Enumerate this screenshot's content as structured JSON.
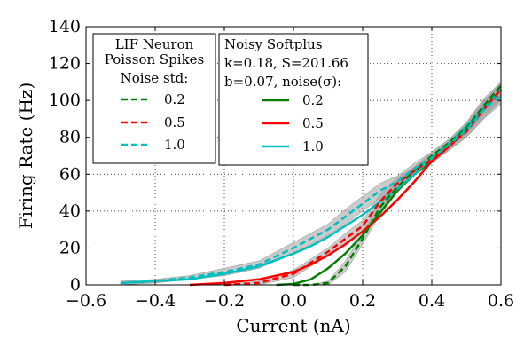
{
  "chart_data": {
    "type": "line",
    "xlabel": "Current (nA)",
    "ylabel": "Firing Rate (Hz)",
    "xlim": [
      -0.6,
      0.6
    ],
    "ylim": [
      0,
      140
    ],
    "x_ticks": [
      -0.6,
      -0.4,
      -0.2,
      0.0,
      0.2,
      0.4,
      0.6
    ],
    "x_tick_labels": [
      "−0.6",
      "−0.4",
      "−0.2",
      "0.0",
      "0.2",
      "0.4",
      "0.6"
    ],
    "y_ticks": [
      0,
      20,
      40,
      60,
      80,
      100,
      120,
      140
    ],
    "y_tick_labels": [
      "0",
      "20",
      "40",
      "60",
      "80",
      "100",
      "120",
      "140"
    ],
    "grid": true,
    "legends": [
      {
        "placement": "top-left",
        "title_lines": [
          "LIF Neuron",
          "Poisson Spikes",
          "Noise std:"
        ],
        "entries": [
          {
            "label": "0.2",
            "color": "#008000",
            "style": "dashed"
          },
          {
            "label": "0.5",
            "color": "#ff0000",
            "style": "dashed"
          },
          {
            "label": "1.0",
            "color": "#00bfbf",
            "style": "dashed"
          }
        ]
      },
      {
        "placement": "top-center",
        "title_lines": [
          "Noisy Softplus",
          "k=0.18, S=201.66",
          "b=0.07, noise(σ):"
        ],
        "entries": [
          {
            "label": "0.2",
            "color": "#008000",
            "style": "solid"
          },
          {
            "label": "0.5",
            "color": "#ff0000",
            "style": "solid"
          },
          {
            "label": "1.0",
            "color": "#00bfbf",
            "style": "solid"
          }
        ]
      }
    ],
    "series": [
      {
        "group": "LIF Neuron Poisson Spikes",
        "label": "0.2",
        "color": "#008000",
        "style": "dashed",
        "x": [
          0.0,
          0.05,
          0.1,
          0.15,
          0.2,
          0.25,
          0.3,
          0.35,
          0.4,
          0.45,
          0.5,
          0.55,
          0.6
        ],
        "y": [
          0,
          0,
          1,
          10,
          25,
          42,
          53,
          62,
          70,
          77,
          85,
          97,
          108
        ],
        "band_low": [
          0,
          0,
          0,
          7,
          22,
          38,
          50,
          60,
          68,
          75,
          82,
          92,
          100
        ],
        "band_high": [
          0,
          0,
          2,
          13,
          28,
          46,
          56,
          64,
          72,
          79,
          88,
          101,
          110
        ]
      },
      {
        "group": "LIF Neuron Poisson Spikes",
        "label": "0.5",
        "color": "#ff0000",
        "style": "dashed",
        "x": [
          -0.2,
          -0.1,
          0.0,
          0.05,
          0.1,
          0.15,
          0.2,
          0.25,
          0.3,
          0.35,
          0.4,
          0.45,
          0.5,
          0.55,
          0.6
        ],
        "y": [
          0,
          1,
          6,
          12,
          18,
          25,
          32,
          45,
          55,
          62,
          68,
          75,
          83,
          95,
          106
        ],
        "band_low": [
          0,
          0,
          4,
          10,
          16,
          22,
          29,
          41,
          52,
          60,
          66,
          73,
          80,
          90,
          100
        ],
        "band_high": [
          0,
          2,
          8,
          14,
          20,
          28,
          35,
          49,
          58,
          64,
          70,
          77,
          86,
          99,
          110
        ]
      },
      {
        "group": "LIF Neuron Poisson Spikes",
        "label": "1.0",
        "color": "#00bfbf",
        "style": "dashed",
        "x": [
          -0.5,
          -0.4,
          -0.3,
          -0.2,
          -0.1,
          0.0,
          0.05,
          0.1,
          0.15,
          0.2,
          0.25,
          0.3,
          0.35,
          0.4,
          0.45,
          0.5,
          0.55,
          0.6
        ],
        "y": [
          1,
          2,
          4,
          7,
          11,
          20,
          25,
          30,
          37,
          44,
          51,
          56,
          63,
          69,
          76,
          84,
          95,
          103
        ],
        "band_low": [
          0,
          1,
          3,
          5,
          9,
          17,
          22,
          27,
          33,
          40,
          47,
          53,
          60,
          66,
          73,
          80,
          90,
          98
        ],
        "band_high": [
          2,
          3,
          5,
          9,
          13,
          23,
          28,
          33,
          41,
          48,
          55,
          59,
          66,
          72,
          79,
          88,
          100,
          108
        ]
      },
      {
        "group": "Noisy Softplus",
        "label": "0.2",
        "color": "#008000",
        "style": "solid",
        "x": [
          -0.05,
          0.0,
          0.05,
          0.1,
          0.15,
          0.2,
          0.25,
          0.3,
          0.35,
          0.4,
          0.45,
          0.5,
          0.55,
          0.6
        ],
        "y": [
          0,
          0.5,
          3,
          9,
          17,
          27,
          39,
          51,
          60,
          67,
          75,
          84,
          95,
          106
        ]
      },
      {
        "group": "Noisy Softplus",
        "label": "0.5",
        "color": "#ff0000",
        "style": "solid",
        "x": [
          -0.3,
          -0.2,
          -0.1,
          0.0,
          0.05,
          0.1,
          0.15,
          0.2,
          0.25,
          0.3,
          0.35,
          0.4,
          0.45,
          0.5,
          0.55,
          0.6
        ],
        "y": [
          0,
          1,
          3,
          7,
          11,
          16,
          22,
          29,
          37,
          46,
          56,
          67,
          75,
          84,
          95,
          106
        ]
      },
      {
        "group": "Noisy Softplus",
        "label": "1.0",
        "color": "#00bfbf",
        "style": "solid",
        "x": [
          -0.5,
          -0.4,
          -0.3,
          -0.2,
          -0.1,
          0.0,
          0.05,
          0.1,
          0.15,
          0.2,
          0.25,
          0.3,
          0.35,
          0.4,
          0.45,
          0.5,
          0.55,
          0.6
        ],
        "y": [
          1,
          2,
          3,
          6,
          10,
          17,
          21,
          26,
          32,
          38,
          45,
          52,
          60,
          69,
          77,
          86,
          96,
          106
        ]
      }
    ]
  }
}
